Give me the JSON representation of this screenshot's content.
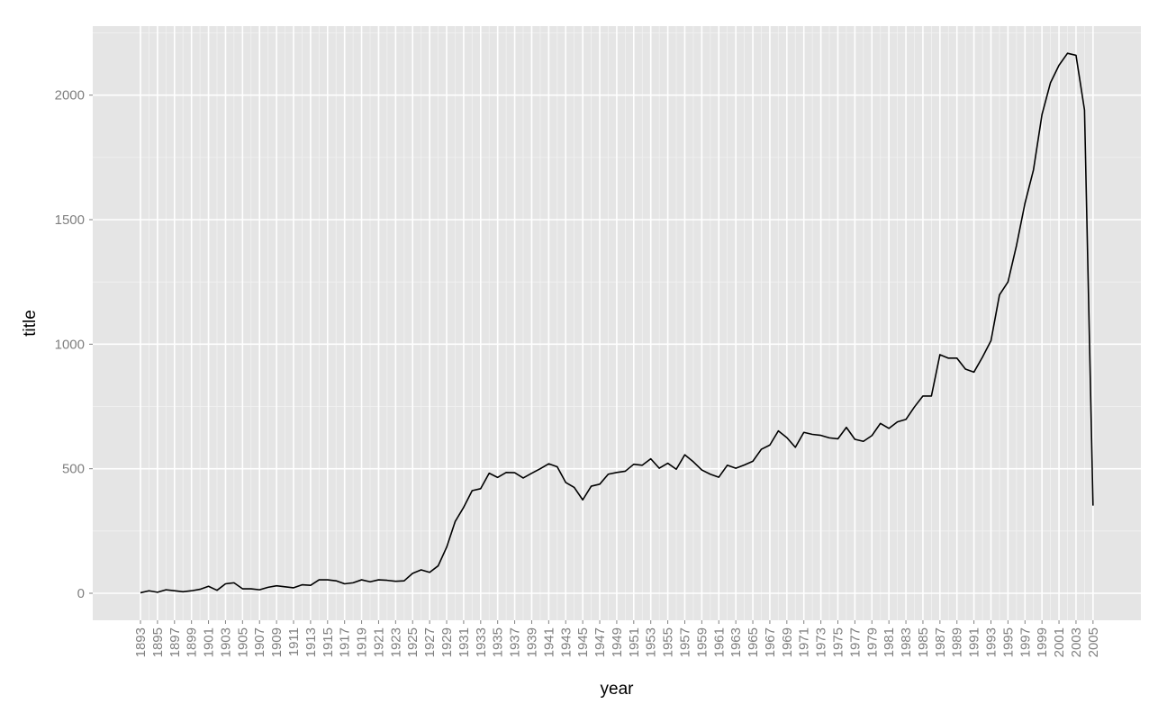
{
  "chart_data": {
    "type": "line",
    "title": "",
    "xlabel": "year",
    "ylabel": "title",
    "xlim": [
      1893,
      2005
    ],
    "ylim": [
      0,
      2200
    ],
    "y_ticks": [
      0,
      500,
      1000,
      1500,
      2000
    ],
    "x_tick_labels": [
      "1893",
      "1895",
      "1897",
      "1899",
      "1901",
      "1903",
      "1905",
      "1907",
      "1909",
      "1911",
      "1913",
      "1915",
      "1917",
      "1919",
      "1921",
      "1923",
      "1925",
      "1927",
      "1929",
      "1931",
      "1933",
      "1935",
      "1937",
      "1939",
      "1941",
      "1943",
      "1945",
      "1947",
      "1949",
      "1951",
      "1953",
      "1955",
      "1957",
      "1959",
      "1961",
      "1963",
      "1965",
      "1967",
      "1969",
      "1971",
      "1973",
      "1975",
      "1977",
      "1979",
      "1981",
      "1983",
      "1985",
      "1987",
      "1989",
      "1991",
      "1993",
      "1995",
      "1997",
      "1999",
      "2001",
      "2003",
      "2005"
    ],
    "grid": true,
    "panel_color": "#e5e5e5",
    "line_color": "#000000",
    "series": [
      {
        "x": [
          1893,
          1894,
          1895,
          1896,
          1897,
          1898,
          1899,
          1900,
          1901,
          1902,
          1903,
          1904,
          1905,
          1906,
          1907,
          1908,
          1909,
          1910,
          1911,
          1912,
          1913,
          1914,
          1915,
          1916,
          1917,
          1918,
          1919,
          1920,
          1921,
          1922,
          1923,
          1924,
          1925,
          1926,
          1927,
          1928,
          1929,
          1930,
          1931,
          1932,
          1933,
          1934,
          1935,
          1936,
          1937,
          1938,
          1939,
          1940,
          1941,
          1942,
          1943,
          1944,
          1945,
          1946,
          1947,
          1948,
          1949,
          1950,
          1951,
          1952,
          1953,
          1954,
          1955,
          1956,
          1957,
          1958,
          1959,
          1960,
          1961,
          1962,
          1963,
          1964,
          1965,
          1966,
          1967,
          1968,
          1969,
          1970,
          1971,
          1972,
          1973,
          1974,
          1975,
          1976,
          1977,
          1978,
          1979,
          1980,
          1981,
          1982,
          1983,
          1984,
          1985,
          1986,
          1987,
          1988,
          1989,
          1990,
          1991,
          1992,
          1993,
          1994,
          1995,
          1996,
          1997,
          1998,
          1999,
          2000,
          2001,
          2002,
          2003,
          2004,
          2005
        ],
        "values": [
          2,
          10,
          4,
          14,
          10,
          6,
          10,
          16,
          28,
          12,
          38,
          42,
          18,
          18,
          14,
          24,
          30,
          26,
          22,
          34,
          32,
          54,
          54,
          50,
          38,
          42,
          54,
          46,
          54,
          52,
          48,
          50,
          80,
          94,
          84,
          110,
          185,
          288,
          345,
          412,
          420,
          482,
          465,
          485,
          484,
          463,
          482,
          500,
          520,
          508,
          445,
          425,
          375,
          430,
          438,
          478,
          485,
          490,
          518,
          514,
          540,
          502,
          522,
          498,
          556,
          528,
          495,
          478,
          466,
          514,
          502,
          515,
          530,
          578,
          595,
          652,
          625,
          586,
          646,
          638,
          634,
          624,
          620,
          666,
          618,
          610,
          633,
          682,
          662,
          688,
          698,
          748,
          792,
          792,
          958,
          944,
          944,
          900,
          888,
          948,
          1014,
          1198,
          1250,
          1396,
          1566,
          1700,
          1922,
          2050,
          2120,
          2168,
          2160,
          1940,
          352
        ]
      }
    ]
  }
}
